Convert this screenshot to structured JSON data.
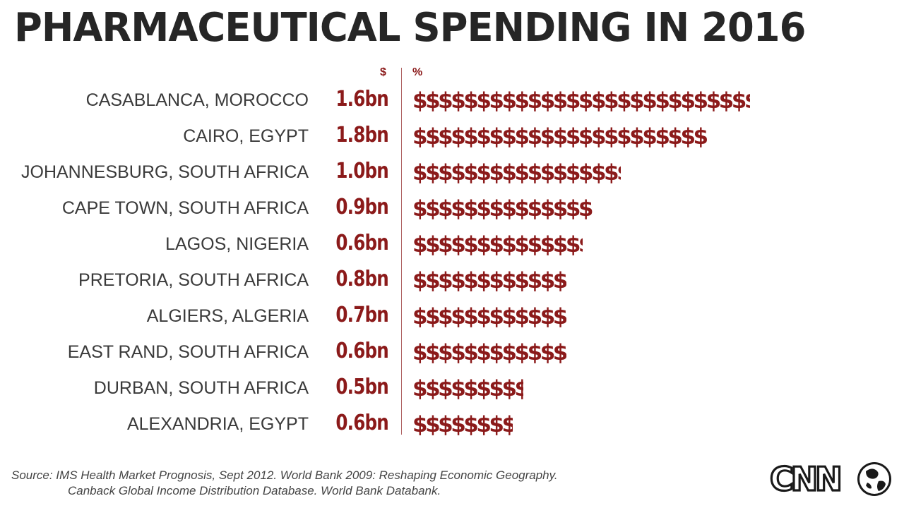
{
  "chart_data": {
    "type": "bar",
    "title": "PHARMACEUTICAL SPENDING IN 2016",
    "column_headers": {
      "value": "$",
      "bar": "%"
    },
    "symbol": "$",
    "categories": [
      "CASABLANCA, MOROCCO",
      "CAIRO, EGYPT",
      "JOHANNESBURG, SOUTH AFRICA",
      "CAPE TOWN, SOUTH AFRICA",
      "LAGOS, NIGERIA",
      "PRETORIA, SOUTH AFRICA",
      "ALGIERS, ALGERIA",
      "EAST RAND, SOUTH AFRICA",
      "DURBAN, SOUTH AFRICA",
      "ALEXANDRIA, EGYPT"
    ],
    "value_labels": [
      "1.6bn",
      "1.8bn",
      "1.0bn",
      "0.9bn",
      "0.6bn",
      "0.8bn",
      "0.7bn",
      "0.6bn",
      "0.5bn",
      "0.6bn"
    ],
    "values": [
      1.6,
      1.8,
      1.0,
      0.9,
      0.6,
      0.8,
      0.7,
      0.6,
      0.5,
      0.6
    ],
    "percent_symbols": [
      31,
      27,
      19,
      16.4,
      15.5,
      14,
      14,
      14,
      10,
      9
    ],
    "colors": {
      "accent": "#8b1a1a",
      "label": "#3a3a3a",
      "title": "#262626"
    }
  },
  "source": {
    "line1": "Source: IMS Health Market Prognosis, Sept 2012. World Bank 2009: Reshaping Economic Geography.",
    "line2": "Canback Global Income Distribution Database. World Bank Databank."
  },
  "logo": {
    "text": "CNN"
  }
}
